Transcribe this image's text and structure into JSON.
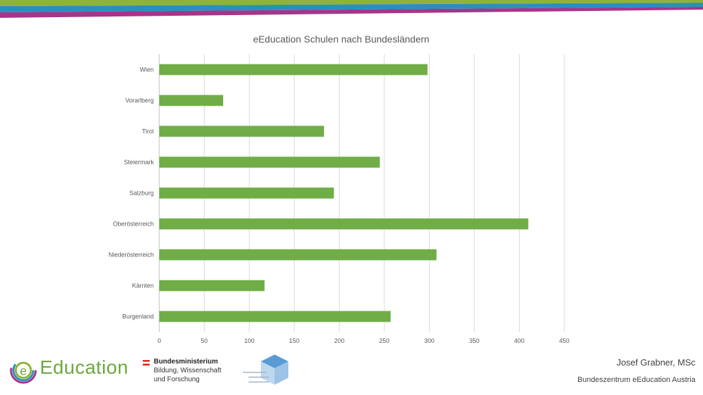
{
  "header": {
    "stripe_colors": [
      "#8db33a",
      "#2a8fbd",
      "#a7348a"
    ]
  },
  "chart_data": {
    "type": "bar",
    "orientation": "horizontal",
    "title": "eEducation Schulen nach Bundesländern",
    "categories": [
      "Wien",
      "Vorarlberg",
      "Tirol",
      "Steiermark",
      "Salzburg",
      "Oberösterreich",
      "Niederösterreich",
      "Kärnten",
      "Burgenland"
    ],
    "values": [
      298,
      71,
      183,
      245,
      194,
      410,
      308,
      117,
      257
    ],
    "xlim": [
      0,
      450
    ],
    "xticks": [
      0,
      50,
      100,
      150,
      200,
      250,
      300,
      350,
      400,
      450
    ],
    "grid": true,
    "legend": "none",
    "bar_color": "#70ad47",
    "xlabel": "",
    "ylabel": ""
  },
  "footer": {
    "logo_text": "Education",
    "logo_mark": "e",
    "logo_color": "#6ca83f",
    "ministry_name": "Bundesministerium",
    "ministry_sub1": "Bildung, Wissenschaft",
    "ministry_sub2": "und Forschung",
    "presenter_name": "Josef Grabner, MSc",
    "presenter_org": "Bundeszentrum eEducation Austria",
    "ph_logo_icon": "cube-icon"
  }
}
